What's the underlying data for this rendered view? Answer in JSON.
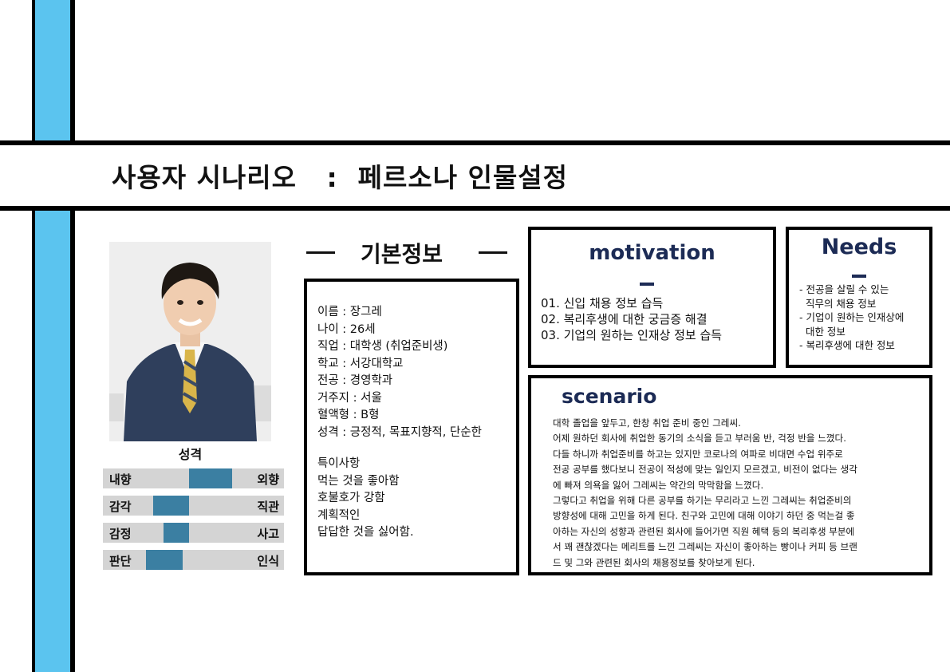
{
  "page_title": "사용자 시나리오   :  페르소나 인물설정",
  "profile": {
    "photo_alt": "photo",
    "traits_title": "성격",
    "traits": [
      {
        "left": "내향",
        "right": "외향",
        "level": 0.75
      },
      {
        "left": "감각",
        "right": "직관",
        "level": 0.25
      },
      {
        "left": "감정",
        "right": "사고",
        "level": 0.35
      },
      {
        "left": "판단",
        "right": "인식",
        "level": 0.2
      }
    ]
  },
  "basic_info": {
    "heading": "기본정보",
    "lines": [
      "이름 : 장그레",
      "나이 : 26세",
      "직업 : 대학생 (취업준비생)",
      "학교 : 서강대학교",
      "전공 : 경영학과",
      "거주지 : 서울",
      "혈액형 : B형",
      "성격 : 긍정적, 목표지향적, 단순한"
    ],
    "special_title": "특이사항",
    "special_lines": [
      "먹는 것을 좋아함",
      "호불호가 강함",
      "계획적인",
      "답답한 것을 싫어함."
    ]
  },
  "motivation": {
    "heading": "motivation",
    "items": [
      "01. 신입 채용 정보 습득",
      "02. 복리후생에 대한 궁금증 해결",
      "03. 기업의 원하는 인재상 정보 습득"
    ]
  },
  "needs": {
    "heading": "Needs",
    "items": [
      "- 전공을 살릴 수 있는",
      "  직무의 채용 정보",
      "- 기업이 원하는 인재상에",
      "  대한 정보",
      "- 복리후생에 대한 정보"
    ]
  },
  "scenario": {
    "heading": "scenario",
    "lines": [
      "대학 졸업을 앞두고, 한창 취업 준비 중인 그레씨.",
      "어제 원하던 회사에 취업한 동기의 소식을 듣고 부러움 반, 걱정 반을 느꼈다.",
      "다들 하니까 취업준비를 하고는 있지만 코로나의 여파로 비대면 수업 위주로",
      "전공 공부를 했다보니 전공이 적성에 맞는 일인지 모르겠고, 비전이 없다는 생각",
      "에 빠져 의욕을 잃어 그레씨는 약간의 막막함을 느꼈다.",
      "그렇다고 취업을 위해 다른 공부를 하기는 무리라고 느낀 그레씨는 취업준비의",
      "방향성에 대해 고민을 하게 된다. 친구와 고민에 대해 이야기 하던 중 먹는걸 좋",
      "아하는 자신의 성향과 관련된 회사에 들어가면 직원 혜택 등의 복리후생 부분에",
      "서 꽤 괜찮겠다는 메리트를 느낀 그레씨는 자신이 좋아하는 빵이나 커피 등 브랜",
      "드 및 그와 관련된 회사의 채용정보를 찾아보게 된다."
    ]
  },
  "colors": {
    "stripe_blue": "#5bc4ef",
    "trait_fill": "#3b7fa2",
    "trait_track": "#d4d4d4",
    "heading_navy": "#1c2b55"
  }
}
